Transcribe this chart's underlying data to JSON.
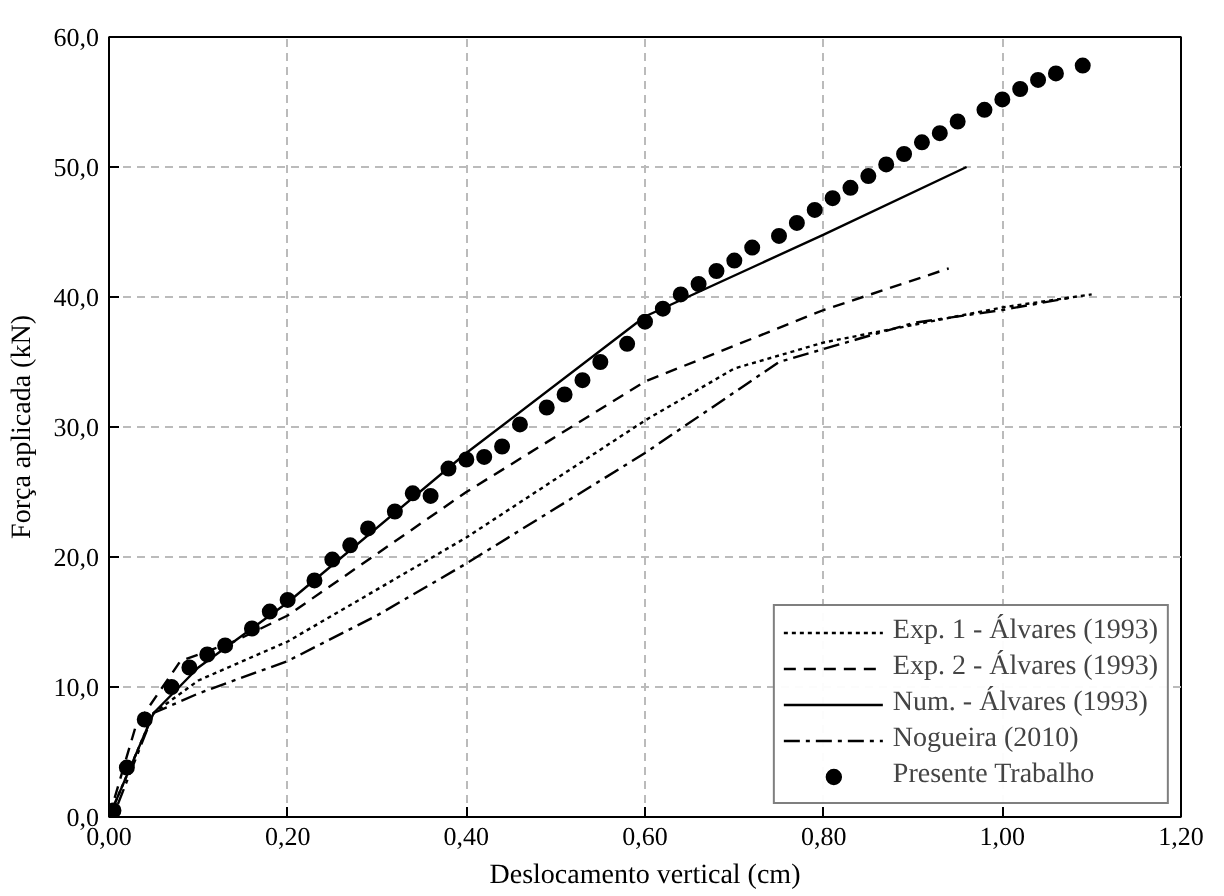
{
  "chart_data": {
    "type": "line",
    "xlabel": "Deslocamento vertical (cm)",
    "ylabel": "Força aplicada (kN)",
    "xlim": [
      0,
      1.2
    ],
    "ylim": [
      0,
      60
    ],
    "xticks": [
      {
        "value": 0,
        "label": "0,00"
      },
      {
        "value": 0.2,
        "label": "0,20"
      },
      {
        "value": 0.4,
        "label": "0,40"
      },
      {
        "value": 0.6,
        "label": "0,60"
      },
      {
        "value": 0.8,
        "label": "0,80"
      },
      {
        "value": 1.0,
        "label": "1,00"
      },
      {
        "value": 1.2,
        "label": "1,20"
      }
    ],
    "yticks": [
      {
        "value": 0,
        "label": "0,0"
      },
      {
        "value": 10,
        "label": "10,0"
      },
      {
        "value": 20,
        "label": "20,0"
      },
      {
        "value": 30,
        "label": "30,0"
      },
      {
        "value": 40,
        "label": "40,0"
      },
      {
        "value": 50,
        "label": "50,0"
      },
      {
        "value": 60,
        "label": "60,0"
      }
    ],
    "grid": true,
    "legend": "bottom right",
    "series": [
      {
        "name": "Exp. 1 - Álvares (1993)",
        "color": "#000000",
        "line_style": "dotted",
        "x": [
          0,
          0.05,
          0.1,
          0.2,
          0.4,
          0.6,
          0.7,
          0.8,
          1.0,
          1.1
        ],
        "values": [
          0,
          8,
          10.5,
          13.5,
          21.5,
          30.5,
          34.5,
          36.5,
          39.2,
          40.2
        ]
      },
      {
        "name": "Exp. 2 - Álvares (1993)",
        "color": "#000000",
        "line_style": "dashed",
        "x": [
          0,
          0.03,
          0.08,
          0.14,
          0.2,
          0.4,
          0.6,
          0.8,
          0.94
        ],
        "values": [
          0,
          7,
          12,
          13.5,
          15.5,
          25,
          33.5,
          39,
          42.2
        ]
      },
      {
        "name": "Num. - Álvares (1993)",
        "color": "#000000",
        "line_style": "solid",
        "x": [
          0,
          0.05,
          0.1,
          0.2,
          0.4,
          0.6,
          0.8,
          0.96
        ],
        "values": [
          0,
          8,
          11.5,
          16.5,
          28,
          38.5,
          44.8,
          50
        ]
      },
      {
        "name": "Nogueira (2010)",
        "color": "#000000",
        "line_style": "dashdot",
        "x": [
          0.01,
          0.05,
          0.1,
          0.2,
          0.3,
          0.4,
          0.6,
          0.75,
          0.9,
          1.0,
          1.08
        ],
        "values": [
          1,
          8,
          9.5,
          12,
          15.5,
          19.5,
          28,
          35,
          38,
          39,
          40
        ]
      },
      {
        "name": "Presente Trabalho",
        "color": "#000000",
        "type": "scatter",
        "marker": "circle",
        "x": [
          0.005,
          0.02,
          0.04,
          0.07,
          0.09,
          0.11,
          0.13,
          0.16,
          0.18,
          0.2,
          0.23,
          0.25,
          0.27,
          0.29,
          0.32,
          0.34,
          0.36,
          0.38,
          0.4,
          0.42,
          0.44,
          0.46,
          0.49,
          0.51,
          0.53,
          0.55,
          0.58,
          0.6,
          0.62,
          0.64,
          0.66,
          0.68,
          0.7,
          0.72,
          0.75,
          0.77,
          0.79,
          0.81,
          0.83,
          0.85,
          0.87,
          0.89,
          0.91,
          0.93,
          0.95,
          0.98,
          1.0,
          1.02,
          1.04,
          1.06,
          1.09
        ],
        "values": [
          0.5,
          3.8,
          7.5,
          10,
          11.5,
          12.5,
          13.2,
          14.5,
          15.8,
          16.7,
          18.2,
          19.8,
          20.9,
          22.2,
          23.5,
          24.9,
          24.7,
          26.8,
          27.5,
          27.7,
          28.5,
          30.2,
          31.5,
          32.5,
          33.6,
          35,
          36.4,
          38.1,
          39.1,
          40.2,
          41,
          42,
          42.8,
          43.8,
          44.7,
          45.7,
          46.7,
          47.6,
          48.4,
          49.3,
          50.2,
          51,
          51.9,
          52.6,
          53.5,
          54.4,
          55.2,
          56,
          56.7,
          57.2,
          57.8
        ]
      }
    ]
  }
}
